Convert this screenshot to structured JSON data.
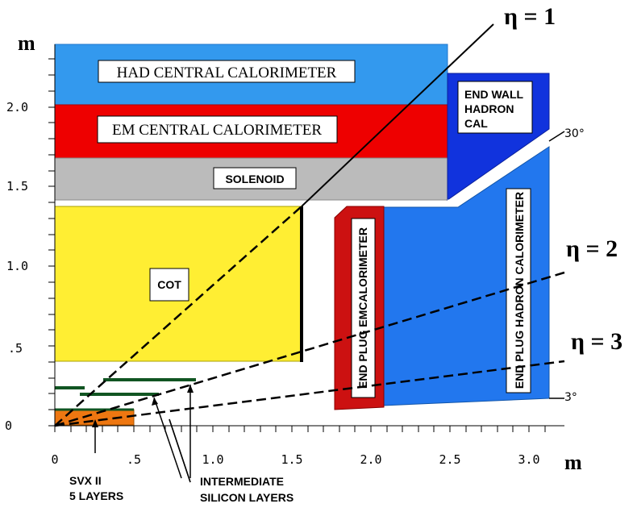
{
  "axes": {
    "x_unit": "m",
    "y_unit": "m",
    "x_ticks": [
      "0",
      ".5",
      "1.0",
      "1.5",
      "2.0",
      "2.5",
      "3.0"
    ],
    "y_ticks": [
      "0",
      ".5",
      "1.0",
      "1.5",
      "2.0"
    ]
  },
  "components": {
    "had_central": "HAD CENTRAL CALORIMETER",
    "em_central": "EM CENTRAL CALORIMETER",
    "solenoid": "SOLENOID",
    "cot": "COT",
    "end_wall": [
      "END WALL",
      "HADRON",
      "CAL"
    ],
    "end_plug_em": "END PLUG EMCALORIMETER",
    "end_plug_hadron": "END PLUG HADRON CALORIMETER"
  },
  "eta_lines": {
    "eta1": "η = 1",
    "eta2": "η = 2",
    "eta3": "η = 3"
  },
  "angles": {
    "a30": "30°",
    "a3": "3°"
  },
  "annotations": {
    "svx": [
      "SVX II",
      "5 LAYERS"
    ],
    "intermediate": [
      "INTERMEDIATE",
      "SILICON LAYERS"
    ]
  },
  "colors": {
    "had_blue": "#3399ee",
    "em_red": "#ee0000",
    "solenoid_gray": "#bbbbbb",
    "cot_yellow": "#ffee33",
    "endwall_blue": "#1133dd",
    "plug_red": "#cc1111",
    "plug_blue": "#2277ee",
    "svx_orange": "#ee7711",
    "silicon_green": "#115522"
  }
}
